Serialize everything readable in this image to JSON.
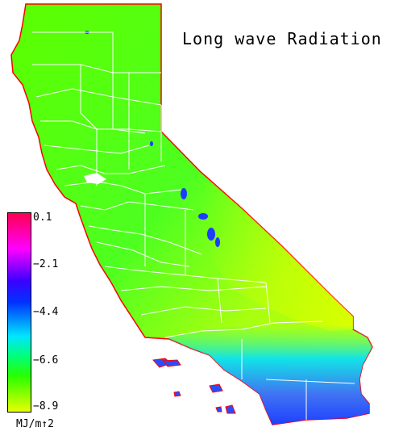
{
  "map": {
    "title": "Long wave Radiation",
    "legend": {
      "ticks": [
        "0.1",
        "−2.1",
        "−4.4",
        "−6.6",
        "−8.9"
      ],
      "unit": "MJ/m↑2"
    },
    "colors": {
      "max": "#ff0050",
      "high": "#ff00ff",
      "mid_high": "#3c00ff",
      "mid": "#0032ff",
      "mid_low": "#00e6ff",
      "low_mid": "#00ff7a",
      "low": "#28ff00",
      "min": "#e6ff00",
      "border": "#ffffff",
      "coast": "#ff0000"
    }
  }
}
